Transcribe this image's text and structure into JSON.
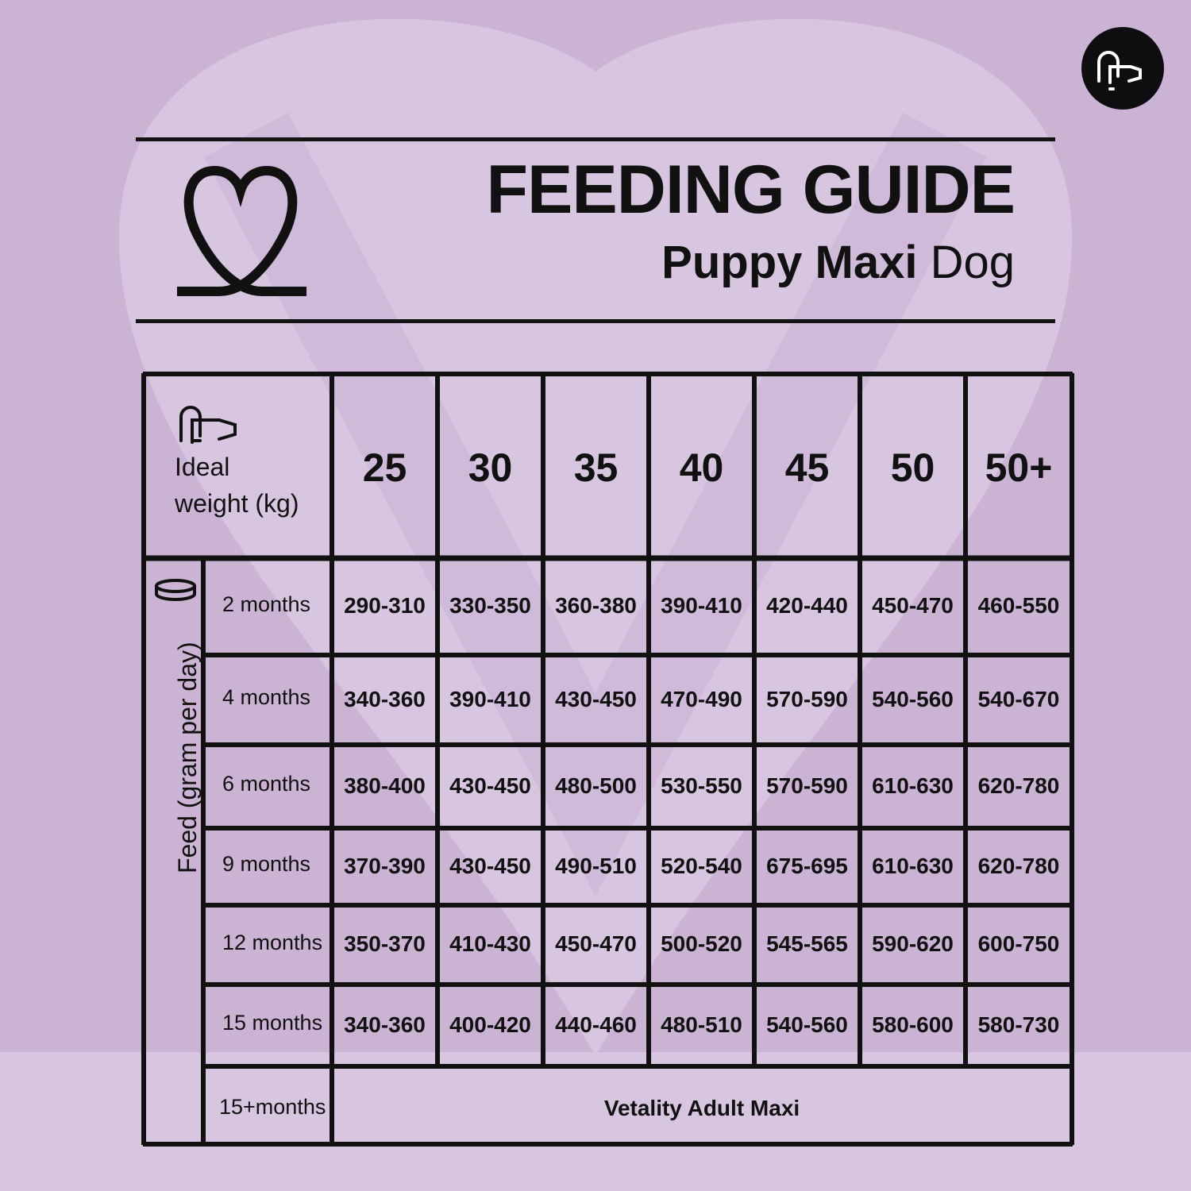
{
  "header": {
    "title": "FEEDING GUIDE",
    "subtitle_bold": "Puppy Maxi",
    "subtitle_regular": "Dog"
  },
  "colors": {
    "background": "#cbb3d4",
    "heart": "#d8c6e1",
    "ink": "#111111"
  },
  "icons": [
    "brand-dog-logo-icon",
    "heart-ribbon-logo-icon",
    "dog-head-icon",
    "food-bowl-icon"
  ],
  "table": {
    "weight_header_line1": "Ideal",
    "weight_header_line2": "weight (kg)",
    "feed_label": "Feed (gram per day)",
    "weights": [
      "25",
      "30",
      "35",
      "40",
      "45",
      "50",
      "50+"
    ],
    "rows": [
      {
        "age": "2 months",
        "values": [
          "290-310",
          "330-350",
          "360-380",
          "390-410",
          "420-440",
          "450-470",
          "460-550"
        ]
      },
      {
        "age": "4 months",
        "values": [
          "340-360",
          "390-410",
          "430-450",
          "470-490",
          "570-590",
          "540-560",
          "540-670"
        ]
      },
      {
        "age": "6 months",
        "values": [
          "380-400",
          "430-450",
          "480-500",
          "530-550",
          "570-590",
          "610-630",
          "620-780"
        ]
      },
      {
        "age": "9 months",
        "values": [
          "370-390",
          "430-450",
          "490-510",
          "520-540",
          "675-695",
          "610-630",
          "620-780"
        ]
      },
      {
        "age": "12 months",
        "values": [
          "350-370",
          "410-430",
          "450-470",
          "500-520",
          "545-565",
          "590-620",
          "600-750"
        ]
      },
      {
        "age": "15 months",
        "values": [
          "340-360",
          "400-420",
          "440-460",
          "480-510",
          "540-560",
          "580-600",
          "580-730"
        ]
      }
    ],
    "final_row": {
      "age": "15+months",
      "note": "Vetality Adult Maxi"
    }
  }
}
